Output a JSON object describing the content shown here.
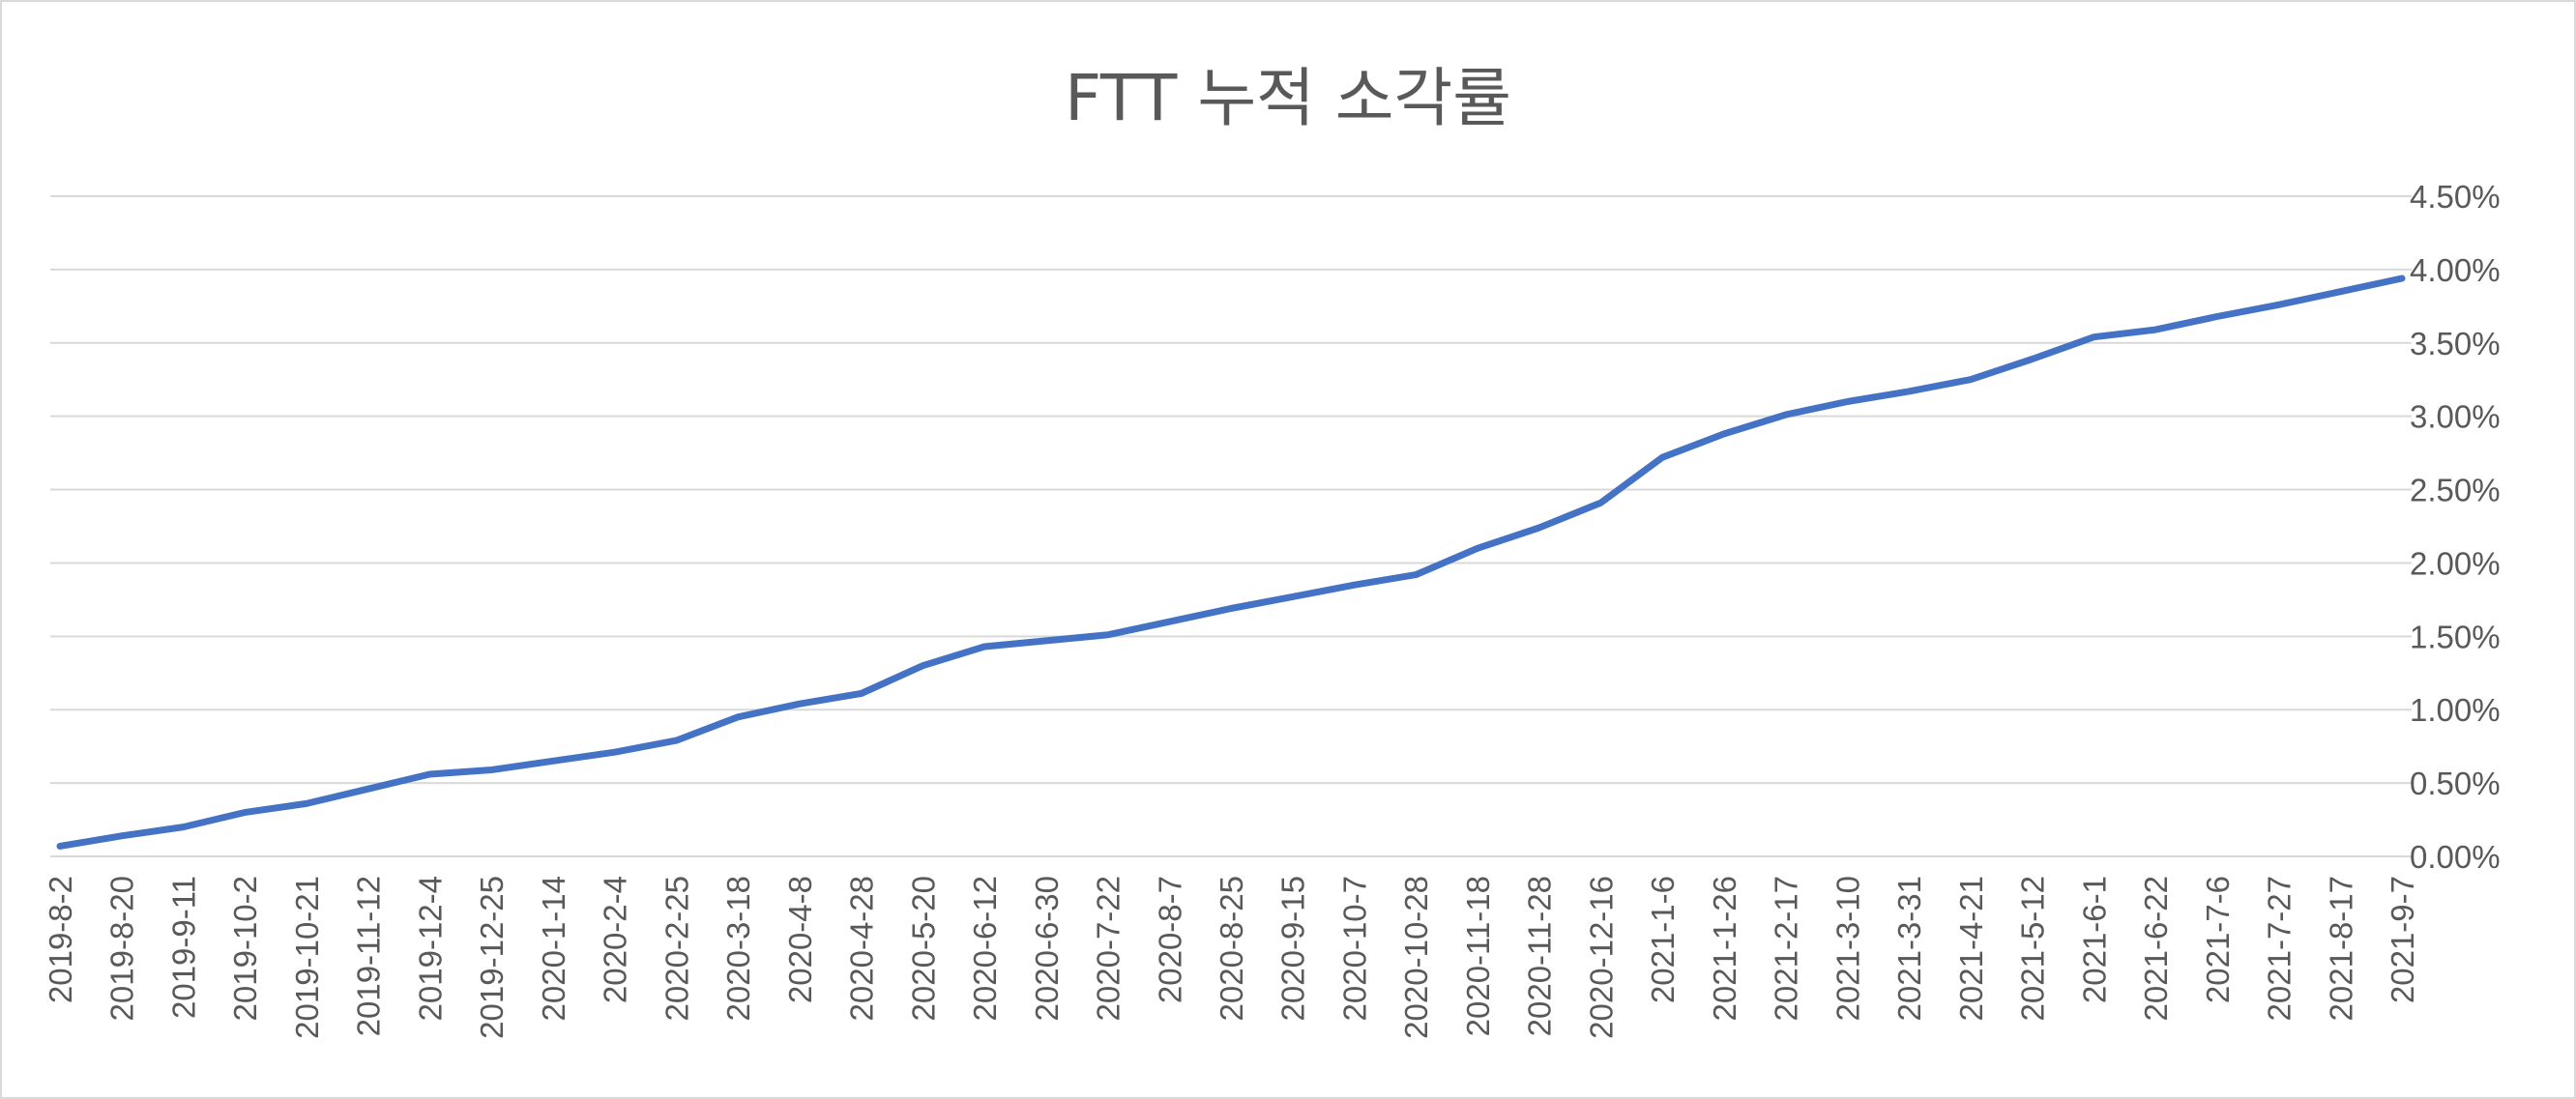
{
  "chart_data": {
    "type": "line",
    "title": "FTT 누적 소각률",
    "xlabel": "",
    "ylabel": "",
    "ylim": [
      0,
      4.5
    ],
    "y_tick_labels": [
      "0.00%",
      "0.50%",
      "1.00%",
      "1.50%",
      "2.00%",
      "2.50%",
      "3.00%",
      "3.50%",
      "4.00%",
      "4.50%"
    ],
    "y_ticks": [
      0,
      0.5,
      1.0,
      1.5,
      2.0,
      2.5,
      3.0,
      3.5,
      4.0,
      4.5
    ],
    "y_axis_position": "right",
    "grid": true,
    "legend": "none",
    "x": [
      "2019-8-2",
      "2019-8-20",
      "2019-9-11",
      "2019-10-2",
      "2019-10-21",
      "2019-11-12",
      "2019-12-4",
      "2019-12-25",
      "2020-1-14",
      "2020-2-4",
      "2020-2-25",
      "2020-3-18",
      "2020-4-8",
      "2020-4-28",
      "2020-5-20",
      "2020-6-12",
      "2020-6-30",
      "2020-7-22",
      "2020-8-7",
      "2020-8-25",
      "2020-9-15",
      "2020-10-7",
      "2020-10-28",
      "2020-11-18",
      "2020-11-28",
      "2020-12-16",
      "2021-1-6",
      "2021-1-26",
      "2021-2-17",
      "2021-3-10",
      "2021-3-31",
      "2021-4-21",
      "2021-5-12",
      "2021-6-1",
      "2021-6-22",
      "2021-7-6",
      "2021-7-27",
      "2021-8-17",
      "2021-9-7"
    ],
    "series": [
      {
        "values": [
          0.07,
          0.14,
          0.2,
          0.3,
          0.36,
          0.46,
          0.56,
          0.59,
          0.65,
          0.71,
          0.79,
          0.95,
          1.04,
          1.11,
          1.3,
          1.43,
          1.47,
          1.51,
          1.6,
          1.69,
          1.77,
          1.85,
          1.92,
          2.1,
          2.24,
          2.41,
          2.72,
          2.88,
          3.01,
          3.1,
          3.17,
          3.25,
          3.39,
          3.54,
          3.59,
          3.68,
          3.76,
          3.85,
          3.94
        ],
        "color": "#4472c4"
      }
    ]
  }
}
